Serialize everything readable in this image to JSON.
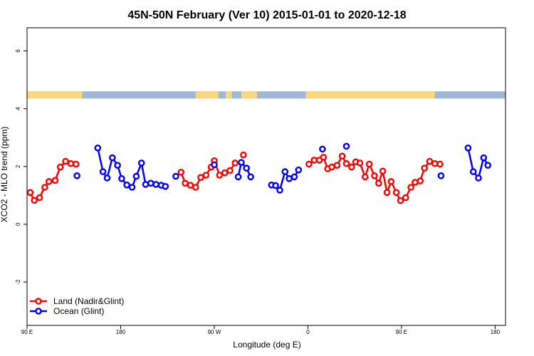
{
  "chart_data": {
    "type": "line",
    "title": "45N-50N February (Ver 10)   2015-01-01 to 2020-12-18",
    "xlabel": "Longitude (deg E)",
    "ylabel": "XCO2 - MLO trend (ppm)",
    "xlim": [
      90,
      550
    ],
    "ylim": [
      -3.5,
      6.8
    ],
    "xticks": [
      {
        "value": 90,
        "label": "90 E"
      },
      {
        "value": 180,
        "label": "180"
      },
      {
        "value": 270,
        "label": "90 W"
      },
      {
        "value": 360,
        "label": "0"
      },
      {
        "value": 450,
        "label": "90 E"
      },
      {
        "value": 540,
        "label": "180"
      }
    ],
    "yticks": [
      {
        "value": -2,
        "label": "-2"
      },
      {
        "value": 0,
        "label": "0"
      },
      {
        "value": 2,
        "label": "2"
      },
      {
        "value": 4,
        "label": "4"
      },
      {
        "value": 6,
        "label": "6"
      }
    ],
    "land_ocean_strip": {
      "y_range": [
        4.35,
        4.6
      ],
      "land_color": "#f9d77e",
      "ocean_color": "#9fb8d8",
      "land_intervals": [
        [
          90,
          143
        ],
        [
          252,
          274
        ],
        [
          281,
          287
        ],
        [
          296,
          311
        ],
        [
          358,
          482
        ]
      ]
    },
    "series": [
      {
        "name": "Land (Nadir&Glint)",
        "color": "#ff0000",
        "segments": [
          [
            [
              93,
              1.1
            ],
            [
              97,
              0.83
            ],
            [
              102,
              0.92
            ],
            [
              107,
              1.28
            ],
            [
              111,
              1.48
            ],
            [
              117,
              1.52
            ],
            [
              122,
              1.98
            ],
            [
              127,
              2.18
            ],
            [
              132,
              2.1
            ],
            [
              137,
              2.08
            ]
          ],
          [
            [
              238,
              1.8
            ],
            [
              242,
              1.42
            ],
            [
              247,
              1.35
            ],
            [
              252,
              1.28
            ],
            [
              257,
              1.62
            ],
            [
              262,
              1.7
            ],
            [
              267,
              1.98
            ],
            [
              270,
              2.2
            ],
            [
              275,
              1.7
            ],
            [
              280,
              1.78
            ],
            [
              285,
              1.86
            ],
            [
              290,
              2.12
            ]
          ],
          [
            [
              298,
              2.4
            ]
          ],
          [
            [
              361,
              2.08
            ],
            [
              366,
              2.22
            ],
            [
              371,
              2.22
            ],
            [
              375,
              2.32
            ],
            [
              379,
              1.92
            ],
            [
              383,
              1.98
            ],
            [
              388,
              2.04
            ],
            [
              393,
              2.36
            ],
            [
              397,
              2.1
            ],
            [
              402,
              1.98
            ],
            [
              406,
              2.16
            ],
            [
              410,
              2.12
            ],
            [
              415,
              1.64
            ],
            [
              419,
              2.08
            ],
            [
              424,
              1.68
            ],
            [
              428,
              1.42
            ],
            [
              432,
              1.84
            ],
            [
              436,
              1.1
            ],
            [
              440,
              1.48
            ],
            [
              445,
              1.1
            ],
            [
              449,
              0.82
            ],
            [
              454,
              0.92
            ],
            [
              459,
              1.28
            ],
            [
              463,
              1.45
            ],
            [
              468,
              1.5
            ],
            [
              472,
              1.94
            ],
            [
              477,
              2.18
            ],
            [
              482,
              2.1
            ],
            [
              487,
              2.08
            ]
          ]
        ]
      },
      {
        "name": "Ocean (Glint)",
        "color": "#0000ff",
        "segments": [
          [
            [
              138,
              1.68
            ]
          ],
          [
            [
              158,
              2.64
            ],
            [
              163,
              1.82
            ],
            [
              167,
              1.6
            ],
            [
              172,
              2.3
            ],
            [
              177,
              2.04
            ],
            [
              181,
              1.58
            ],
            [
              186,
              1.36
            ],
            [
              191,
              1.28
            ],
            [
              195,
              1.66
            ],
            [
              200,
              2.12
            ],
            [
              204,
              1.38
            ],
            [
              209,
              1.42
            ],
            [
              214,
              1.38
            ],
            [
              219,
              1.35
            ],
            [
              223,
              1.31
            ]
          ],
          [
            [
              233,
              1.66
            ]
          ],
          [
            [
              270,
              2.06
            ]
          ],
          [
            [
              293,
              1.64
            ],
            [
              296,
              2.14
            ],
            [
              301,
              1.94
            ],
            [
              305,
              1.64
            ]
          ],
          [
            [
              325,
              1.36
            ],
            [
              329,
              1.34
            ],
            [
              333,
              1.18
            ],
            [
              338,
              1.82
            ],
            [
              342,
              1.58
            ],
            [
              347,
              1.64
            ],
            [
              351,
              1.88
            ]
          ],
          [
            [
              374,
              2.6
            ]
          ],
          [
            [
              397,
              2.7
            ]
          ],
          [
            [
              488,
              1.68
            ]
          ],
          [
            [
              514,
              2.64
            ],
            [
              519,
              1.82
            ],
            [
              524,
              1.6
            ],
            [
              529,
              2.3
            ],
            [
              533,
              2.04
            ]
          ]
        ]
      }
    ],
    "legend": {
      "placement": "bottom-left",
      "entries": [
        "Land (Nadir&Glint)",
        "Ocean (Glint)"
      ]
    },
    "grid": false
  }
}
